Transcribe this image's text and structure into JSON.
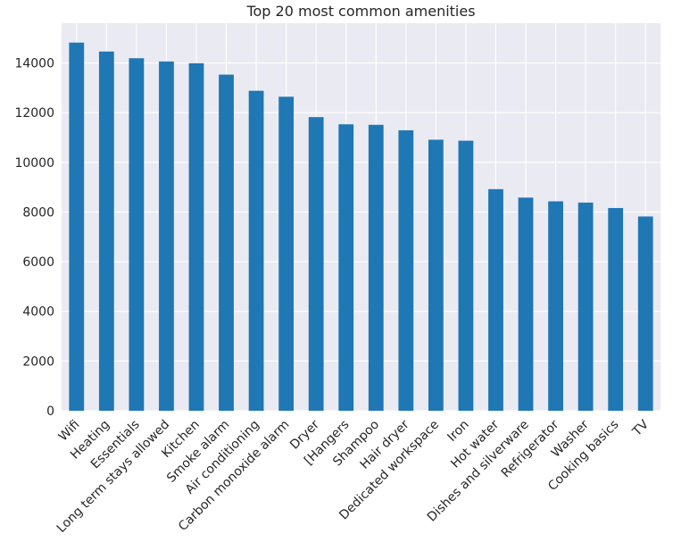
{
  "chart_data": {
    "type": "bar",
    "title": "Top 20 most common amenities",
    "xlabel": "",
    "ylabel": "",
    "categories": [
      "Wifi",
      "Heating",
      "Essentials",
      "Long term stays allowed",
      "Kitchen",
      "Smoke alarm",
      "Air conditioning",
      "Carbon monoxide alarm",
      "Dryer",
      "[Hangers",
      "Shampoo",
      "Hair dryer",
      "Dedicated workspace",
      "Iron",
      "Hot water",
      "Dishes and silverware",
      "Refrigerator",
      "Washer",
      "Cooking basics",
      "TV"
    ],
    "values": [
      14820,
      14460,
      14190,
      14060,
      13990,
      13530,
      12880,
      12640,
      11820,
      11530,
      11510,
      11290,
      10910,
      10870,
      8920,
      8580,
      8430,
      8380,
      8160,
      7820
    ],
    "ylim": [
      0,
      15600
    ],
    "yticks": [
      0,
      2000,
      4000,
      6000,
      8000,
      10000,
      12000,
      14000
    ],
    "ytick_labels": [
      "0",
      "2000",
      "4000",
      "6000",
      "8000",
      "10000",
      "12000",
      "14000"
    ],
    "grid": true,
    "colors": {
      "bar": "#1f77b4",
      "background": "#eaeaf2",
      "grid": "#ffffff",
      "text": "#262626"
    }
  }
}
